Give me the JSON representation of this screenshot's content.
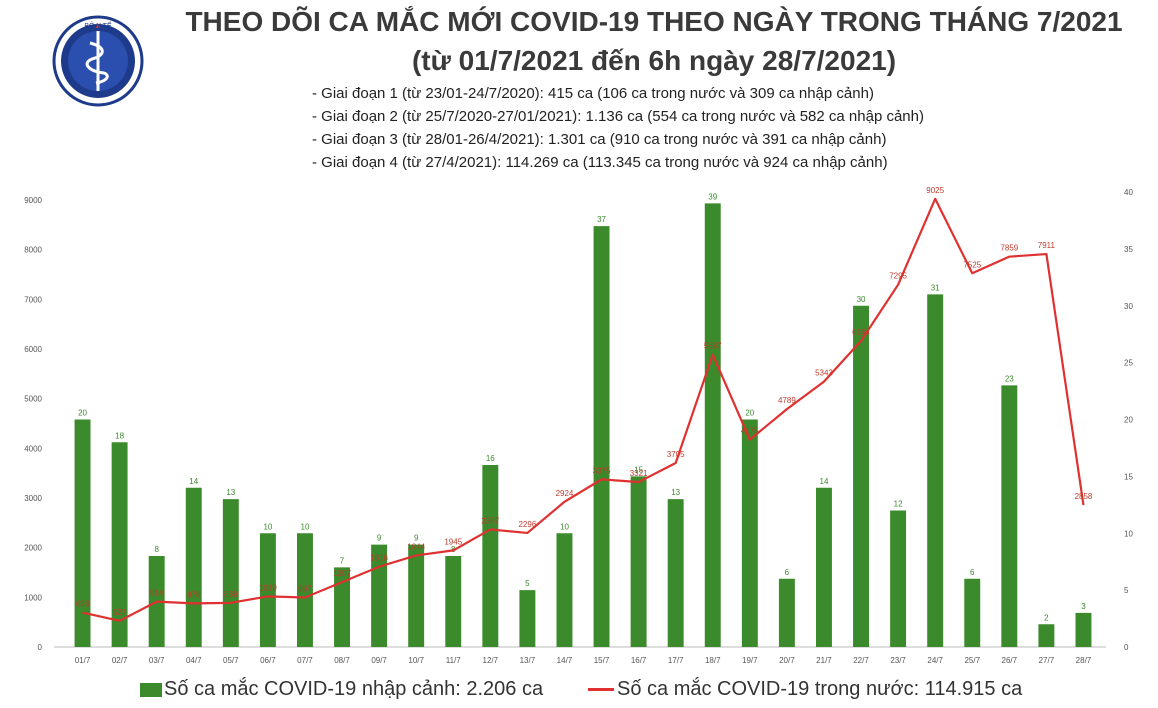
{
  "header": {
    "title_line1": "THEO DÕI CA MẮC MỚI COVID-19 THEO NGÀY TRONG THÁNG 7/2021",
    "title_line2": "(từ 01/7/2021 đến 6h ngày 28/7/2021)",
    "logo_text": "BỘ Y TẾ",
    "notes": [
      "- Giai đoạn 1 (từ 23/01-24/7/2020): 415 ca (106 ca trong nước và 309 ca nhập cảnh)",
      "- Giai đoạn 2 (từ 25/7/2020-27/01/2021): 1.136 ca (554 ca trong nước và 582 ca nhập cảnh)",
      "- Giai đoạn 3 (từ 28/01-26/4/2021): 1.301 ca (910 ca trong nước và 391 ca nhập cảnh)",
      "- Giai đoạn 4 (từ 27/4/2021): 114.269 ca (113.345 ca trong nước và 924 ca nhập cảnh)"
    ]
  },
  "chart_data": {
    "type": "bar",
    "categories": [
      "01/7",
      "02/7",
      "03/7",
      "04/7",
      "05/7",
      "06/7",
      "07/7",
      "08/7",
      "09/7",
      "10/7",
      "11/7",
      "12/7",
      "13/7",
      "14/7",
      "15/7",
      "16/7",
      "17/7",
      "18/7",
      "19/7",
      "20/7",
      "21/7",
      "22/7",
      "23/7",
      "24/7",
      "25/7",
      "26/7",
      "27/7",
      "28/7"
    ],
    "series": [
      {
        "name": "Số ca mắc COVID-19 nhập cảnh: 2.206 ca",
        "type": "bar",
        "axis": "right",
        "values": [
          20,
          18,
          8,
          14,
          13,
          10,
          10,
          7,
          9,
          9,
          8,
          16,
          5,
          10,
          37,
          15,
          13,
          39,
          20,
          6,
          14,
          30,
          12,
          31,
          6,
          23,
          2,
          3
        ],
        "color": "#3b8a2c"
      },
      {
        "name": "Số ca mắc COVID-19 trong nước: 114.915 ca",
        "type": "line",
        "axis": "left",
        "values": [
          693,
          527,
          914,
          878,
          889,
          1019,
          997,
          1307,
          1616,
          1844,
          1945,
          2367,
          2296,
          2924,
          3375,
          3321,
          3705,
          5887,
          4175,
          4789,
          5343,
          6164,
          7295,
          9025,
          7525,
          7859,
          7911,
          2858
        ],
        "color": "#e03131"
      }
    ],
    "yleft": {
      "ticks": [
        "0",
        "1000",
        "2000",
        "3000",
        "4000",
        "5000",
        "6000",
        "7000",
        "8000",
        "9000"
      ],
      "ylim": [
        0,
        9000
      ]
    },
    "yright": {
      "ticks": [
        "0",
        "5",
        "10",
        "15",
        "20",
        "25",
        "30",
        "35",
        "40"
      ],
      "ylim": [
        0,
        40
      ]
    },
    "bar_label_color": "#3b8a2c",
    "line_label_color": "#c0392b",
    "legend_position": "bottom"
  }
}
